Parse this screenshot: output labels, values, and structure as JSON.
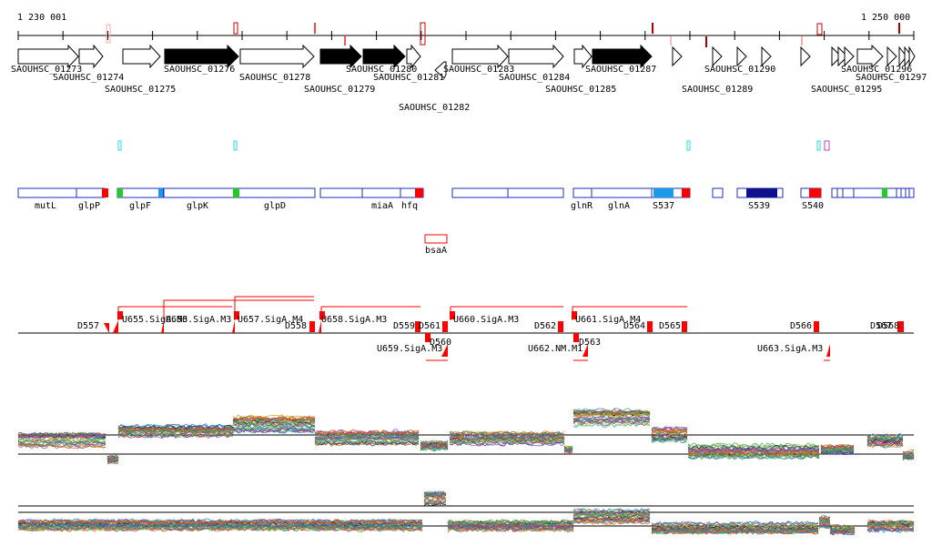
{
  "ruler": {
    "start_label": "1 230 001",
    "end_label": "1 250 000"
  },
  "genes": [
    {
      "label": "SAOUHSC_01273",
      "fill": "white"
    },
    {
      "label": "SAOUHSC_01274",
      "fill": "white"
    },
    {
      "label": "SAOUHSC_01275",
      "fill": "white"
    },
    {
      "label": "SAOUHSC_01276",
      "fill": "black"
    },
    {
      "label": "SAOUHSC_01278",
      "fill": "white"
    },
    {
      "label": "SAOUHSC_01279",
      "fill": "black"
    },
    {
      "label": "SAOUHSC_01280",
      "fill": "black"
    },
    {
      "label": "SAOUHSC_01281",
      "fill": "white"
    },
    {
      "label": "SAOUHSC_01282",
      "fill": "white"
    },
    {
      "label": "SAOUHSC_01283",
      "fill": "white"
    },
    {
      "label": "SAOUHSC_01284",
      "fill": "white"
    },
    {
      "label": "SAOUHSC_01285",
      "fill": "white"
    },
    {
      "label": "SAOUHSC_01287",
      "fill": "black"
    },
    {
      "label": "SAOUHSC_01289",
      "fill": "white"
    },
    {
      "label": "SAOUHSC_01290",
      "fill": "white"
    },
    {
      "label": "SAOUHSC_01295",
      "fill": "white"
    },
    {
      "label": "SAOUHSC_01296",
      "fill": "white"
    },
    {
      "label": "SAOUHSC_01297",
      "fill": "white"
    }
  ],
  "operons": [
    {
      "label": "mutL"
    },
    {
      "label": "glpP"
    },
    {
      "label": "glpF"
    },
    {
      "label": "glpK"
    },
    {
      "label": "glpD"
    },
    {
      "label": "miaA"
    },
    {
      "label": "hfq"
    },
    {
      "label": "bsaA"
    },
    {
      "label": "glnR"
    },
    {
      "label": "glnA"
    },
    {
      "label": "S537"
    },
    {
      "label": "S539"
    },
    {
      "label": "S540"
    }
  ],
  "transcription_units": [
    {
      "label": "D557"
    },
    {
      "label": "U655.SigA.M3"
    },
    {
      "label": "U656.SigA.M3"
    },
    {
      "label": "U657.SigA.M4"
    },
    {
      "label": "D558"
    },
    {
      "label": "U658.SigA.M3"
    },
    {
      "label": "D559"
    },
    {
      "label": "D561"
    },
    {
      "label": "U660.SigA.M3"
    },
    {
      "label": "D562"
    },
    {
      "label": "U661.SigA.M4"
    },
    {
      "label": "D564"
    },
    {
      "label": "D565"
    },
    {
      "label": "D566"
    },
    {
      "label": "D567"
    },
    {
      "label": "D568"
    },
    {
      "label": "D560"
    },
    {
      "label": "U659.SigA.M3"
    },
    {
      "label": "U662.NM.M1"
    },
    {
      "label": "D563"
    },
    {
      "label": "U663.SigA.M3"
    }
  ],
  "colors": {
    "gene_outline": "#000000",
    "operon_outline": "#1a2fbf",
    "terminator_red": "#ff0000",
    "promoter_cyan": "#22dddd",
    "segment_blue": "#1a9ae8",
    "segment_navy": "#10108c",
    "segment_green": "#22cc22",
    "promoter_magenta": "#bb44bb"
  }
}
